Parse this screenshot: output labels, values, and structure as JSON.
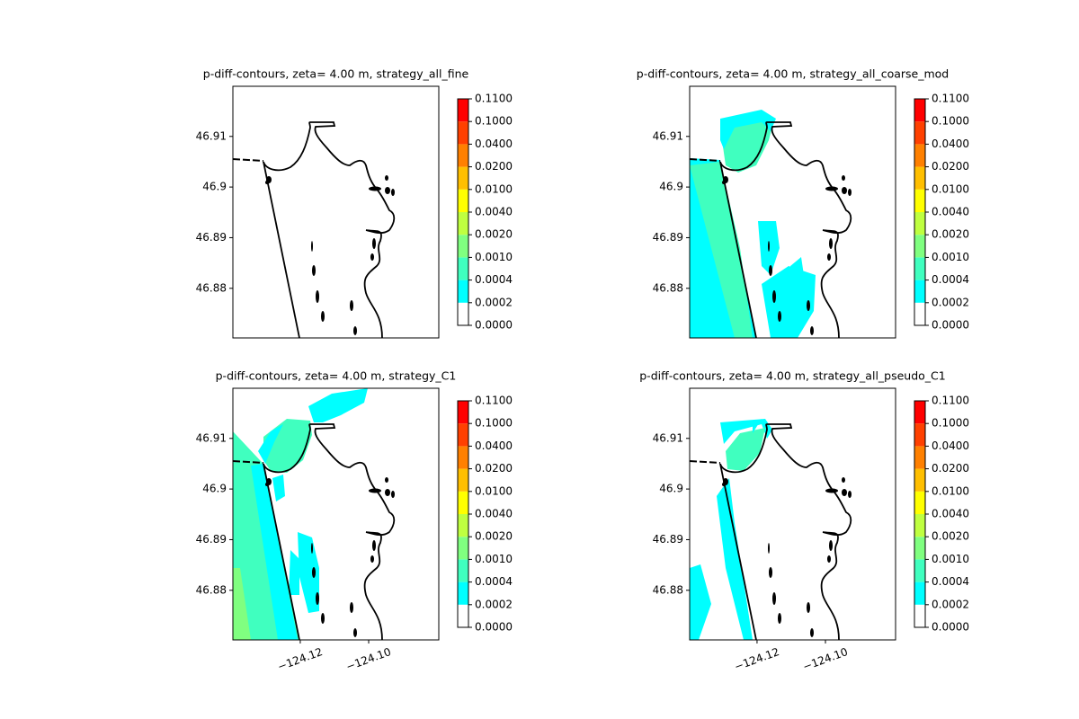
{
  "chart_data": [
    {
      "type": "contour",
      "title": "p-diff-contours, zeta= 4.00 m, strategy_all_fine",
      "xlim": [
        -124.1397,
        -124.0795
      ],
      "ylim": [
        46.8702,
        46.9199
      ],
      "yticks": [
        46.88,
        46.89,
        46.9,
        46.91
      ],
      "colorbar": {
        "levels": [
          0,
          {
            "value": 0.0002,
            "label": "0.0002"
          },
          {
            "value": 0.0004,
            "label": "0.0004"
          },
          {
            "value": 0.001,
            "label": "0.0010"
          },
          {
            "value": 0.002,
            "label": "0.0020"
          },
          {
            "value": 0.004,
            "label": "0.0040"
          },
          {
            "value": 0.01,
            "label": "0.0100"
          },
          {
            "value": 0.02,
            "label": "0.0200"
          },
          {
            "value": 0.04,
            "label": "0.0400"
          },
          {
            "value": 0.1,
            "label": "0.1000"
          },
          {
            "value": 0.11,
            "label": "0.1100"
          }
        ],
        "colors": [
          "#ffffff",
          "#00ffff",
          "#40ffbf",
          "#80ff80",
          "#bfff40",
          "#ffff00",
          "#ffbf00",
          "#ff8000",
          "#ff4000",
          "#ff0000"
        ]
      }
    },
    {
      "type": "contour",
      "title": "p-diff-contours, zeta= 4.00 m, strategy_all_coarse_mod",
      "xlim": [
        -124.1397,
        -124.0795
      ],
      "ylim": [
        46.8702,
        46.9199
      ],
      "yticks": [
        46.88,
        46.89,
        46.9,
        46.91
      ],
      "colorbar": {
        "levels": [
          0,
          {
            "value": 0.0002,
            "label": "0.0002"
          },
          {
            "value": 0.0004,
            "label": "0.0004"
          },
          {
            "value": 0.001,
            "label": "0.0010"
          },
          {
            "value": 0.002,
            "label": "0.0020"
          },
          {
            "value": 0.004,
            "label": "0.0040"
          },
          {
            "value": 0.01,
            "label": "0.0100"
          },
          {
            "value": 0.02,
            "label": "0.0200"
          },
          {
            "value": 0.04,
            "label": "0.0400"
          },
          {
            "value": 0.1,
            "label": "0.1000"
          },
          {
            "value": 0.11,
            "label": "0.1100"
          }
        ],
        "colors": [
          "#ffffff",
          "#00ffff",
          "#40ffbf",
          "#80ff80",
          "#bfff40",
          "#ffff00",
          "#ffbf00",
          "#ff8000",
          "#ff4000",
          "#ff0000"
        ]
      }
    },
    {
      "type": "contour",
      "title": "p-diff-contours, zeta= 4.00 m, strategy_C1",
      "xlim": [
        -124.1397,
        -124.0795
      ],
      "ylim": [
        46.8702,
        46.9199
      ],
      "yticks": [
        46.88,
        46.89,
        46.9,
        46.91
      ],
      "xticks": [
        {
          "value": -124.12,
          "label": "−124.12"
        },
        {
          "value": -124.1,
          "label": "−124.10"
        }
      ],
      "colorbar": {
        "levels": [
          0,
          {
            "value": 0.0002,
            "label": "0.0002"
          },
          {
            "value": 0.0004,
            "label": "0.0004"
          },
          {
            "value": 0.001,
            "label": "0.0010"
          },
          {
            "value": 0.002,
            "label": "0.0020"
          },
          {
            "value": 0.004,
            "label": "0.0040"
          },
          {
            "value": 0.01,
            "label": "0.0100"
          },
          {
            "value": 0.02,
            "label": "0.0200"
          },
          {
            "value": 0.04,
            "label": "0.0400"
          },
          {
            "value": 0.1,
            "label": "0.1000"
          },
          {
            "value": 0.11,
            "label": "0.1100"
          }
        ],
        "colors": [
          "#ffffff",
          "#00ffff",
          "#40ffbf",
          "#80ff80",
          "#bfff40",
          "#ffff00",
          "#ffbf00",
          "#ff8000",
          "#ff4000",
          "#ff0000"
        ]
      }
    },
    {
      "type": "contour",
      "title": "p-diff-contours, zeta= 4.00 m, strategy_all_pseudo_C1",
      "xlim": [
        -124.1397,
        -124.0795
      ],
      "ylim": [
        46.8702,
        46.9199
      ],
      "yticks": [
        46.88,
        46.89,
        46.9,
        46.91
      ],
      "xticks": [
        {
          "value": -124.12,
          "label": "−124.12"
        },
        {
          "value": -124.1,
          "label": "−124.10"
        }
      ],
      "colorbar": {
        "levels": [
          0,
          {
            "value": 0.0002,
            "label": "0.0002"
          },
          {
            "value": 0.0004,
            "label": "0.0004"
          },
          {
            "value": 0.001,
            "label": "0.0010"
          },
          {
            "value": 0.002,
            "label": "0.0020"
          },
          {
            "value": 0.004,
            "label": "0.0040"
          },
          {
            "value": 0.01,
            "label": "0.0100"
          },
          {
            "value": 0.02,
            "label": "0.0200"
          },
          {
            "value": 0.04,
            "label": "0.0400"
          },
          {
            "value": 0.1,
            "label": "0.1000"
          },
          {
            "value": 0.11,
            "label": "0.1100"
          }
        ],
        "colors": [
          "#ffffff",
          "#00ffff",
          "#40ffbf",
          "#80ff80",
          "#bfff40",
          "#ffff00",
          "#ffbf00",
          "#ff8000",
          "#ff4000",
          "#ff0000"
        ]
      }
    }
  ]
}
